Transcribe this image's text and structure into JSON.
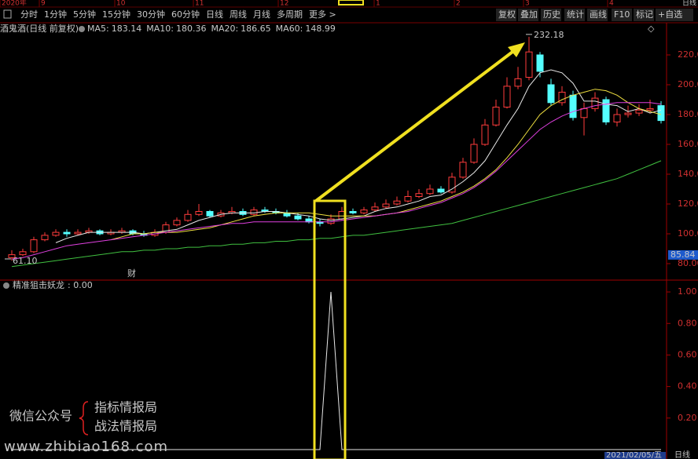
{
  "toolbar": {
    "periods": [
      "分时",
      "1分钟",
      "5分钟",
      "15分钟",
      "30分钟",
      "60分钟",
      "日线",
      "周线",
      "月线",
      "多周期",
      "更多 >"
    ],
    "active": 6,
    "tools": [
      "复权",
      "叠加",
      "历史",
      "统计",
      "画线",
      "F10",
      "标记",
      "+自选"
    ]
  },
  "date_ruler": {
    "top": [
      "2020年",
      "9",
      "10",
      "11",
      "12",
      "1",
      "2",
      "3",
      "4"
    ],
    "bottom": "2021/02/05/五"
  },
  "right_labels": [
    "日线",
    "日线"
  ],
  "event_marker": "财",
  "watermark": {
    "left": "微信公众号",
    "lines": [
      "指标情报局",
      "战法情报局"
    ],
    "url": "www.zhibiao168.com"
  },
  "chart_data": [
    {
      "type": "candlestick",
      "title": "酒鬼酒(日线 前复权)",
      "up_color": "#ff3c3c",
      "down_color": "#54ffff",
      "open": [
        84,
        86,
        88,
        96,
        99,
        101,
        100,
        101,
        102,
        100,
        101,
        102,
        100,
        99,
        101,
        106,
        109,
        113,
        115,
        112,
        114,
        115,
        113,
        116,
        115,
        114,
        112,
        110,
        108,
        107,
        110,
        115,
        114,
        116,
        118,
        120,
        122,
        125,
        127,
        130,
        128,
        138,
        148,
        160,
        173,
        185,
        199,
        205,
        220,
        200,
        188,
        193,
        178,
        184,
        190,
        175,
        180,
        181,
        183,
        186
      ],
      "high": [
        89,
        90,
        98,
        101,
        103,
        103,
        103,
        104,
        103,
        103,
        104,
        103,
        102,
        103,
        108,
        111,
        116,
        120,
        116,
        116,
        118,
        117,
        118,
        118,
        117,
        116,
        114,
        112,
        110,
        113,
        118,
        117,
        118,
        121,
        123,
        125,
        129,
        130,
        133,
        132,
        141,
        151,
        164,
        177,
        190,
        205,
        212,
        232.18,
        222,
        204,
        199,
        196,
        188,
        195,
        192,
        184,
        186,
        187,
        190,
        189
      ],
      "low": [
        82,
        85,
        87,
        95,
        98,
        98,
        99,
        100,
        99,
        99,
        100,
        99,
        98,
        98,
        100,
        105,
        108,
        112,
        111,
        111,
        113,
        112,
        112,
        114,
        113,
        111,
        109,
        107,
        105,
        106,
        109,
        113,
        113,
        115,
        117,
        119,
        121,
        124,
        126,
        127,
        127,
        137,
        147,
        159,
        172,
        184,
        197,
        203,
        205,
        186,
        186,
        176,
        166,
        182,
        173,
        172,
        178,
        179,
        181,
        174
      ],
      "close": [
        86,
        88,
        96,
        99,
        101,
        100,
        101,
        102,
        100,
        101,
        102,
        100,
        99,
        101,
        106,
        109,
        113,
        115,
        112,
        114,
        115,
        113,
        116,
        115,
        114,
        112,
        110,
        108,
        107,
        110,
        115,
        114,
        116,
        118,
        120,
        122,
        125,
        127,
        130,
        128,
        138,
        148,
        160,
        173,
        185,
        199,
        204,
        222,
        209,
        188,
        195,
        178,
        184,
        191,
        175,
        180,
        181,
        183,
        184,
        176
      ],
      "series": [
        {
          "name": "MA5:",
          "color": "#e8e8e8",
          "last": 183.14,
          "values": [
            null,
            null,
            null,
            null,
            94,
            97,
            99,
            101,
            101,
            101,
            101,
            101,
            100,
            101,
            102,
            103,
            106,
            109,
            111,
            113,
            114,
            114,
            114,
            115,
            115,
            114,
            113,
            112,
            110,
            109,
            110,
            111,
            112,
            115,
            117,
            118,
            120,
            122,
            125,
            126,
            130,
            135,
            141,
            149,
            161,
            173,
            184,
            199,
            208,
            210,
            208,
            201,
            189,
            189,
            187,
            186,
            182,
            184,
            181,
            183
          ]
        },
        {
          "name": "MA10:",
          "color": "#f0e040",
          "last": 180.36,
          "values": [
            null,
            null,
            null,
            null,
            null,
            null,
            null,
            null,
            null,
            96,
            98,
            100,
            100,
            101,
            101,
            101,
            102,
            103,
            104,
            106,
            108,
            110,
            112,
            113,
            114,
            114,
            114,
            114,
            113,
            112,
            112,
            112,
            112,
            112,
            113,
            114,
            116,
            118,
            120,
            122,
            125,
            128,
            132,
            137,
            143,
            151,
            160,
            170,
            180,
            186,
            190,
            193,
            195,
            197,
            196,
            193,
            188,
            184,
            182,
            180
          ]
        },
        {
          "name": "MA20:",
          "color": "#e040e0",
          "last": 186.65,
          "values": [
            83,
            84,
            86,
            88,
            90,
            92,
            93,
            94,
            95,
            96,
            97,
            98,
            99,
            100,
            101,
            102,
            103,
            104,
            105,
            106,
            107,
            107,
            108,
            108,
            108,
            108,
            108,
            108,
            108,
            108,
            109,
            110,
            111,
            112,
            113,
            114,
            115,
            117,
            119,
            121,
            124,
            127,
            131,
            136,
            142,
            149,
            156,
            163,
            170,
            175,
            179,
            182,
            184,
            186,
            187,
            188,
            188,
            188,
            188,
            187
          ]
        },
        {
          "name": "MA60:",
          "color": "#40c040",
          "last": 148.99,
          "values": [
            78,
            79,
            80,
            81,
            82,
            83,
            84,
            85,
            86,
            87,
            88,
            88,
            89,
            89,
            90,
            90,
            91,
            91,
            92,
            92,
            93,
            93,
            94,
            94,
            95,
            95,
            96,
            96,
            97,
            97,
            98,
            99,
            99,
            100,
            101,
            102,
            103,
            104,
            105,
            106,
            107,
            109,
            111,
            113,
            115,
            117,
            119,
            121,
            123,
            125,
            127,
            129,
            131,
            133,
            135,
            137,
            140,
            143,
            146,
            149
          ]
        }
      ],
      "annotations": [
        {
          "value": 232.18,
          "label": "232.18"
        },
        {
          "value": 61.1,
          "label": "61.10"
        }
      ],
      "price_tag": {
        "value": 85.84,
        "label": "85.84"
      },
      "ylim": [
        70,
        240
      ],
      "yticks": [
        {
          "value": 220,
          "label": "220.00"
        },
        {
          "value": 200,
          "label": "200.00"
        },
        {
          "value": 180,
          "label": "180.00"
        },
        {
          "value": 160,
          "label": "160.00"
        },
        {
          "value": 140,
          "label": "140.00"
        },
        {
          "value": 120,
          "label": "120.00"
        },
        {
          "value": 100,
          "label": "100.00"
        },
        {
          "value": 80,
          "label": "80.00"
        }
      ]
    },
    {
      "type": "line",
      "title": "精准狙击妖龙",
      "current": {
        "value": 0,
        "label": ": 0.00"
      },
      "color": "#e8e8e8",
      "values": [
        0,
        0,
        0,
        0,
        0,
        0,
        0,
        0,
        0,
        0,
        0,
        0,
        0,
        0,
        0,
        0,
        0,
        0,
        0,
        0,
        0,
        0,
        0,
        0,
        0,
        0,
        0,
        0,
        0,
        1,
        0,
        0,
        0,
        0,
        0,
        0,
        0,
        0,
        0,
        0,
        0,
        0,
        0,
        0,
        0,
        0,
        0,
        0,
        0,
        0,
        0,
        0,
        0,
        0,
        0,
        0,
        0,
        0,
        0,
        0
      ],
      "ylim": [
        0,
        1.07
      ],
      "yticks": [
        {
          "value": 1,
          "label": "1.00"
        },
        {
          "value": 0.8,
          "label": "0.80"
        },
        {
          "value": 0.6,
          "label": "0.60"
        },
        {
          "value": 0.4,
          "label": "0.40"
        },
        {
          "value": 0.2,
          "label": "0.20"
        }
      ]
    }
  ]
}
